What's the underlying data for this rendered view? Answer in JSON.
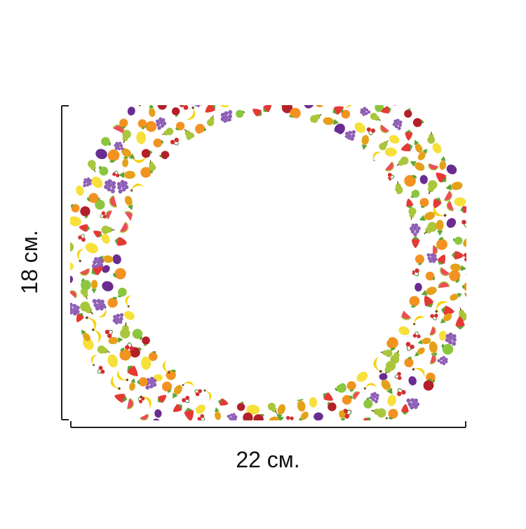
{
  "dimensions": {
    "width_label": "22 см.",
    "height_label": "18 см."
  },
  "product": {
    "pattern_motifs": [
      "banana",
      "orange",
      "lemon",
      "pear",
      "apple",
      "strawberry",
      "grape",
      "plum",
      "pineapple",
      "cherry",
      "watermelon"
    ]
  },
  "colors": {
    "background": "#ffffff",
    "dimension_lines": "#222222",
    "banana": "#f5d30f",
    "orange": "#f39220",
    "lemon": "#f7e03a",
    "pear": "#a9c63c",
    "apple_red": "#b3202a",
    "apple_green": "#8cc63f",
    "strawberry": "#e53935",
    "grape": "#8e5fb5",
    "plum": "#6a2c91",
    "pineapple": "#e5a11a",
    "leaf": "#5aa832",
    "cherry": "#d32f2f",
    "watermelon": "#ee4d5a"
  }
}
